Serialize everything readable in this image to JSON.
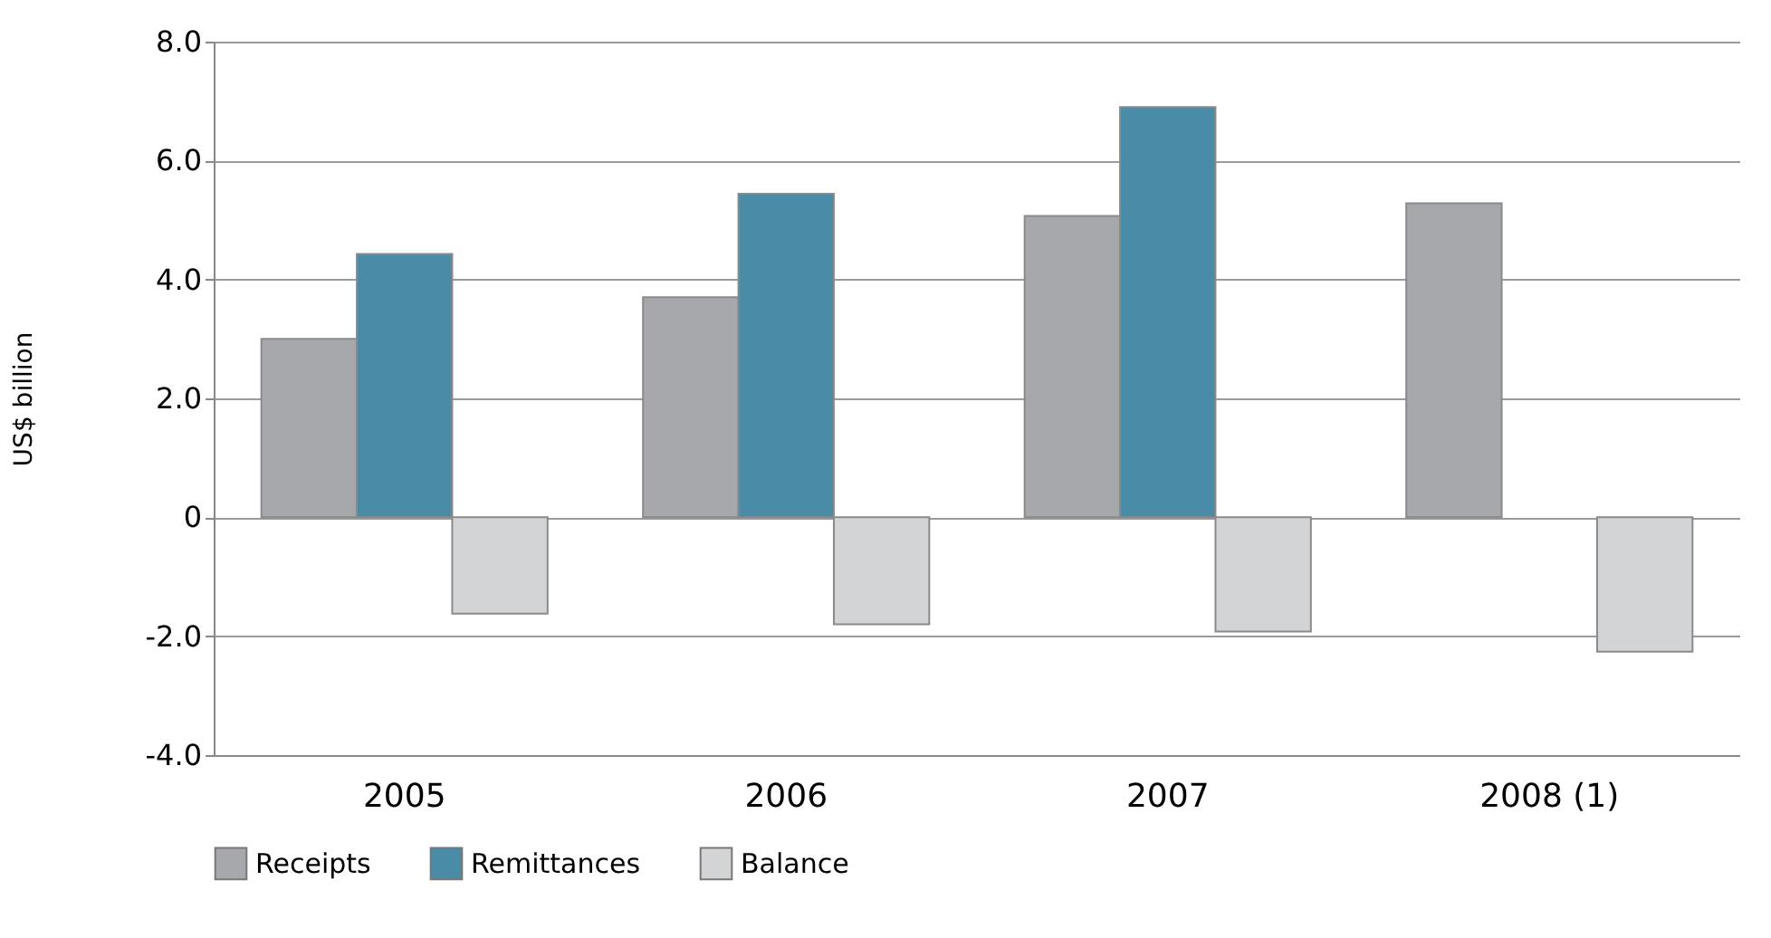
{
  "chart_data": {
    "type": "bar",
    "ylabel": "US$ billion",
    "categories": [
      "2005",
      "2006",
      "2007",
      "2008 (1)"
    ],
    "series": [
      {
        "name": "Receipts",
        "color": "#a7a8ab",
        "values": [
          3.0,
          3.7,
          5.07,
          5.28
        ]
      },
      {
        "name": "Remittances",
        "color": "#4a8ba8",
        "values": [
          4.43,
          5.44,
          6.9,
          null
        ]
      },
      {
        "name": "Balance",
        "color": "#d3d4d6",
        "values": [
          -1.62,
          -1.8,
          -1.92,
          -2.26
        ]
      }
    ],
    "ylim": [
      -4,
      8
    ],
    "yticks": [
      {
        "value": -4,
        "label": "-4.0"
      },
      {
        "value": -2,
        "label": "-2.0"
      },
      0,
      {
        "value": 2,
        "label": "2.0"
      },
      {
        "value": 4,
        "label": "4.0"
      },
      {
        "value": 6,
        "label": "6.0"
      },
      {
        "value": 8,
        "label": "8.0"
      }
    ],
    "grid": "y",
    "legend": "bottom"
  }
}
